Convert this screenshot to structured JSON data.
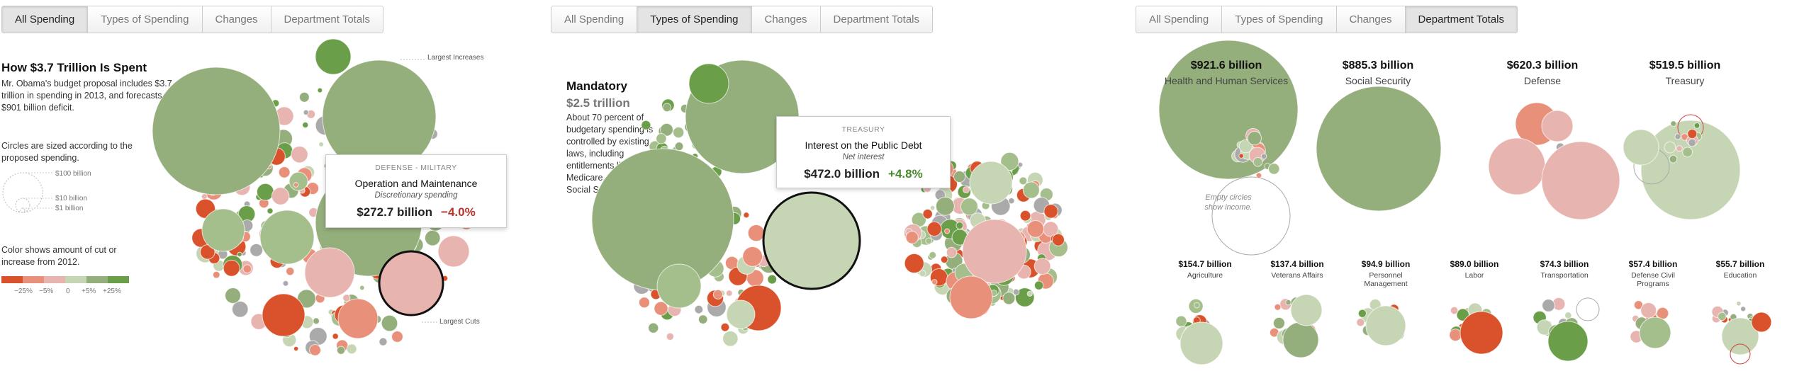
{
  "panel1": {
    "tabs": [
      {
        "label": "All Spending",
        "active": true
      },
      {
        "label": "Types of Spending",
        "active": false
      },
      {
        "label": "Changes",
        "active": false
      },
      {
        "label": "Department Totals",
        "active": false
      }
    ],
    "title": "How $3.7 Trillion Is Spent",
    "intro": "Mr. Obama's budget proposal includes $3.7 trillion in spending in 2013, and forecasts a $901 billion deficit.",
    "size_note": "Circles are sized according to the proposed spending.",
    "size_legend": [
      "$100 billion",
      "$10 billion",
      "$1 billion"
    ],
    "color_note": "Color shows amount of cut or increase from 2012.",
    "color_legend": [
      "−25%",
      "−5%",
      "0",
      "+5%",
      "+25%"
    ],
    "label_increases": "Largest Increases",
    "label_cuts": "Largest Cuts",
    "tooltip": {
      "category": "DEFENSE - MILITARY",
      "name": "Operation and Maintenance",
      "type": "Discretionary spending",
      "amount": "$272.7 billion",
      "change": "−4.0%"
    }
  },
  "panel2": {
    "tabs": [
      {
        "label": "All Spending",
        "active": false
      },
      {
        "label": "Types of Spending",
        "active": true
      },
      {
        "label": "Changes",
        "active": false
      },
      {
        "label": "Department Totals",
        "active": false
      }
    ],
    "title": "Mandatory",
    "amount": "$2.5 trillion",
    "body": "About 70 percent of budgetary spending is controlled by existing laws, including entitlements like Medicare, Medicaid and Social Security.",
    "tooltip": {
      "category": "TREASURY",
      "name": "Interest on the Public Debt",
      "type": "Net interest",
      "amount": "$472.0 billion",
      "change": "+4.8%"
    }
  },
  "panel3": {
    "tabs": [
      {
        "label": "All Spending",
        "active": false
      },
      {
        "label": "Types of Spending",
        "active": false
      },
      {
        "label": "Changes",
        "active": false
      },
      {
        "label": "Department Totals",
        "active": true
      }
    ],
    "empty_note": "Empty circles show income.",
    "big_departments": [
      {
        "value": "$921.6 billion",
        "name": "Health and Human Services"
      },
      {
        "value": "$885.3 billion",
        "name": "Social Security"
      },
      {
        "value": "$620.3 billion",
        "name": "Defense"
      },
      {
        "value": "$519.5 billion",
        "name": "Treasury"
      }
    ],
    "small_departments": [
      {
        "value": "$154.7 billion",
        "name": "Agriculture"
      },
      {
        "value": "$137.4 billion",
        "name": "Veterans Affairs"
      },
      {
        "value": "$94.9 billion",
        "name": "Personnel Management"
      },
      {
        "value": "$89.0 billion",
        "name": "Labor"
      },
      {
        "value": "$74.3 billion",
        "name": "Transportation"
      },
      {
        "value": "$57.4 billion",
        "name": "Defense Civil Programs"
      },
      {
        "value": "$55.7 billion",
        "name": "Education"
      }
    ]
  },
  "colors": {
    "cut_large": "#d9522b",
    "cut": "#e8907a",
    "cut_small": "#e8b4b0",
    "neutral": "#c6d6b4",
    "inc_small": "#a5bf8c",
    "inc": "#94ae7c",
    "inc_large": "#6a9e48",
    "gray": "#aaaaaa"
  },
  "chart_data": [
    {
      "type": "bubble",
      "title": "How $3.7 Trillion Is Spent",
      "total_spending": "$3.7 trillion",
      "deficit": "$901 billion",
      "highlight": {
        "category": "DEFENSE - MILITARY",
        "name": "Operation and Maintenance",
        "type": "Discretionary spending",
        "value_billion": 272.7,
        "change_pct": -4.0
      },
      "color_scale_pct": [
        -25,
        -5,
        0,
        5,
        25
      ],
      "size_legend_billion": [
        100,
        10,
        1
      ]
    },
    {
      "type": "bubble",
      "group": "Mandatory",
      "group_total": "$2.5 trillion",
      "highlight": {
        "category": "TREASURY",
        "name": "Interest on the Public Debt",
        "type": "Net interest",
        "value_billion": 472.0,
        "change_pct": 4.8
      }
    },
    {
      "type": "bubble",
      "view": "Department Totals",
      "categories": [
        "Health and Human Services",
        "Social Security",
        "Defense",
        "Treasury",
        "Agriculture",
        "Veterans Affairs",
        "Personnel Management",
        "Labor",
        "Transportation",
        "Defense Civil Programs",
        "Education"
      ],
      "values_billion": [
        921.6,
        885.3,
        620.3,
        519.5,
        154.7,
        137.4,
        94.9,
        89.0,
        74.3,
        57.4,
        55.7
      ]
    }
  ]
}
